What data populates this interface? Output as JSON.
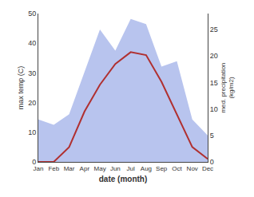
{
  "chart_data": {
    "type": "line",
    "categories": [
      "Jan",
      "Feb",
      "Mar",
      "Apr",
      "May",
      "Jun",
      "Jul",
      "Aug",
      "Sep",
      "Oct",
      "Nov",
      "Dec"
    ],
    "series": [
      {
        "type": "area",
        "axis": "y2",
        "color": "#b8c4ee",
        "values": [
          8,
          7,
          9,
          17,
          25,
          21,
          27,
          26,
          18,
          19,
          8,
          5
        ]
      },
      {
        "type": "line",
        "color": "#b03030",
        "values": [
          0,
          0,
          5,
          17,
          26,
          33,
          37,
          36,
          27,
          16,
          5,
          1
        ]
      }
    ],
    "xlabel": "date (month)",
    "ylabel": "max temp (C)",
    "y2label": "med. precipitation\n(kg/m2)",
    "ylim": [
      0,
      50
    ],
    "yticks": [
      0,
      10,
      20,
      30,
      40,
      50
    ],
    "y2lim": [
      0,
      28
    ],
    "y2ticks": [
      0,
      5,
      10,
      15,
      20,
      25
    ],
    "grid": false
  }
}
